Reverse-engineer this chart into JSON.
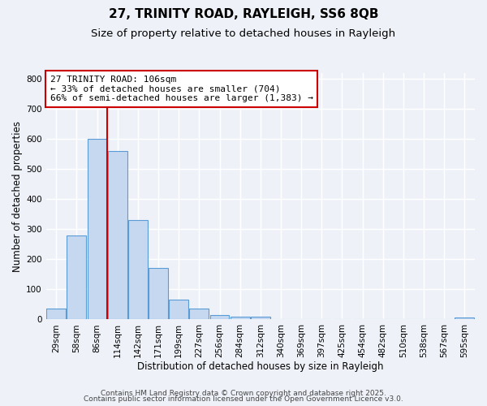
{
  "title": "27, TRINITY ROAD, RAYLEIGH, SS6 8QB",
  "subtitle": "Size of property relative to detached houses in Rayleigh",
  "xlabel": "Distribution of detached houses by size in Rayleigh",
  "ylabel": "Number of detached properties",
  "bar_labels": [
    "29sqm",
    "58sqm",
    "86sqm",
    "114sqm",
    "142sqm",
    "171sqm",
    "199sqm",
    "227sqm",
    "256sqm",
    "284sqm",
    "312sqm",
    "340sqm",
    "369sqm",
    "397sqm",
    "425sqm",
    "454sqm",
    "482sqm",
    "510sqm",
    "538sqm",
    "567sqm",
    "595sqm"
  ],
  "bar_values": [
    37,
    280,
    600,
    560,
    330,
    170,
    65,
    37,
    15,
    8,
    8,
    0,
    0,
    0,
    0,
    0,
    0,
    0,
    0,
    0,
    5
  ],
  "bar_color": "#c5d8f0",
  "bar_edge_color": "#5b9bd5",
  "vline_x": 2.5,
  "vline_color": "#cc0000",
  "annotation_title": "27 TRINITY ROAD: 106sqm",
  "annotation_line1": "← 33% of detached houses are smaller (704)",
  "annotation_line2": "66% of semi-detached houses are larger (1,383) →",
  "annotation_box_color": "#cc0000",
  "ylim": [
    0,
    820
  ],
  "yticks": [
    0,
    100,
    200,
    300,
    400,
    500,
    600,
    700,
    800
  ],
  "background_color": "#eef2f8",
  "footer1": "Contains HM Land Registry data © Crown copyright and database right 2025.",
  "footer2": "Contains public sector information licensed under the Open Government Licence v3.0.",
  "title_fontsize": 11,
  "subtitle_fontsize": 9.5,
  "axis_label_fontsize": 8.5,
  "tick_fontsize": 7.5,
  "annotation_fontsize": 8,
  "footer_fontsize": 6.5
}
